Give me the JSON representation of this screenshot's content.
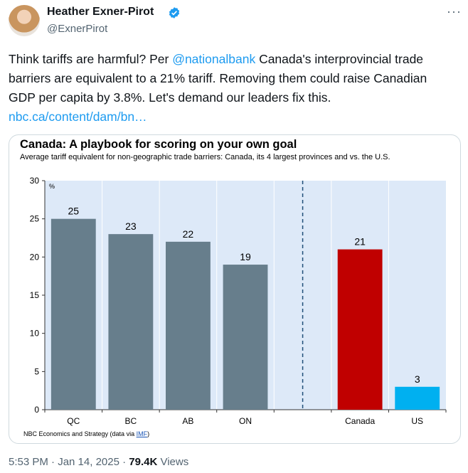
{
  "author": {
    "name": "Heather Exner-Pirot",
    "handle": "@ExnerPirot"
  },
  "tweet": {
    "text_1": "Think tariffs are harmful? Per ",
    "mention": "@nationalbank",
    "text_2": " Canada's interprovincial trade barriers are equivalent to a 21% tariff. Removing them could raise Canadian GDP per capita by 3.8%. Let's demand our leaders fix this. ",
    "link": "nbc.ca/content/dam/bn…",
    "time": "5:53 PM · Jan 14, 2025 · ",
    "views_count": "79.4K",
    "views_label": " Views"
  },
  "icons": {
    "verified": "verified-badge-icon",
    "more": "more-options-icon"
  },
  "colors": {
    "province_bar": "#677e8c",
    "canada_bar": "#c00000",
    "us_bar": "#00b0f0",
    "plot_bg": "#dde9f8",
    "accent": "#1d9bf0"
  },
  "chart": {
    "source_text": "NBC Economics and Strategy (data via ",
    "source_link": "IMF",
    "source_close": ")"
  },
  "chart_data": {
    "type": "bar",
    "title": "Canada: A playbook for scoring on your own goal",
    "subtitle": "Average tariff equivalent for non-geographic trade barriers: Canada, its 4 largest provinces and vs. the U.S.",
    "ylabel": "%",
    "xlabel": "",
    "ylim": [
      0,
      30
    ],
    "yticks": [
      0,
      5,
      10,
      15,
      20,
      25,
      30
    ],
    "categories": [
      "QC",
      "BC",
      "AB",
      "ON",
      "",
      "Canada",
      "US"
    ],
    "values": [
      25,
      23,
      22,
      19,
      null,
      21,
      3
    ],
    "bar_colors": [
      "#677e8c",
      "#677e8c",
      "#677e8c",
      "#677e8c",
      null,
      "#c00000",
      "#00b0f0"
    ],
    "grid": "vertical",
    "divider_after": "ON"
  }
}
